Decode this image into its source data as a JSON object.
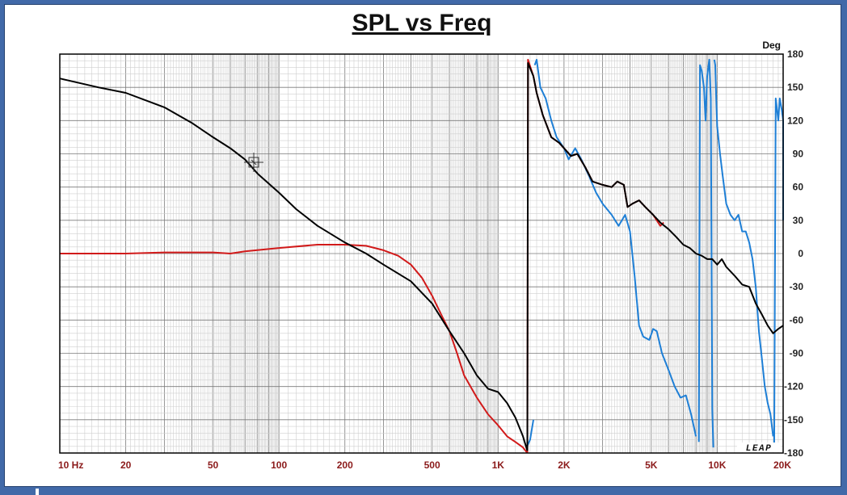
{
  "window": {
    "logo_text": "LEAP"
  },
  "chart_data": {
    "type": "line",
    "title": "SPL vs Freq",
    "ylabel": "Deg",
    "x_scale": "log",
    "xlim": [
      10,
      20000
    ],
    "ylim": [
      -180,
      180
    ],
    "grid": true,
    "x_tick_labels": [
      {
        "value": 10,
        "label": "10 Hz"
      },
      {
        "value": 20,
        "label": "20"
      },
      {
        "value": 50,
        "label": "50"
      },
      {
        "value": 100,
        "label": "100"
      },
      {
        "value": 200,
        "label": "200"
      },
      {
        "value": 500,
        "label": "500"
      },
      {
        "value": 1000,
        "label": "1K"
      },
      {
        "value": 2000,
        "label": "2K"
      },
      {
        "value": 5000,
        "label": "5K"
      },
      {
        "value": 10000,
        "label": "10K"
      },
      {
        "value": 20000,
        "label": "20K"
      }
    ],
    "y_tick_labels": [
      {
        "value": 180,
        "label": "180"
      },
      {
        "value": 150,
        "label": "150"
      },
      {
        "value": 120,
        "label": "120"
      },
      {
        "value": 90,
        "label": "90"
      },
      {
        "value": 60,
        "label": "60"
      },
      {
        "value": 30,
        "label": "30"
      },
      {
        "value": 0,
        "label": "0"
      },
      {
        "value": -30,
        "label": "-30"
      },
      {
        "value": -60,
        "label": "-60"
      },
      {
        "value": -90,
        "label": "-90"
      },
      {
        "value": -120,
        "label": "-120"
      },
      {
        "value": -150,
        "label": "-150"
      },
      {
        "value": -180,
        "label": "-180"
      }
    ],
    "series": [
      {
        "color": "#1e7fd6",
        "segments": [
          [
            [
              1350,
              -175
            ],
            [
              1400,
              -168
            ],
            [
              1450,
              -150
            ]
          ],
          [
            [
              1470,
              170
            ],
            [
              1500,
              175
            ],
            [
              1560,
              150
            ],
            [
              1650,
              140
            ],
            [
              1750,
              120
            ],
            [
              1850,
              105
            ],
            [
              2000,
              95
            ],
            [
              2100,
              85
            ],
            [
              2250,
              95
            ],
            [
              2400,
              85
            ],
            [
              2600,
              70
            ],
            [
              2800,
              55
            ],
            [
              3000,
              45
            ],
            [
              3300,
              35
            ],
            [
              3550,
              25
            ],
            [
              3800,
              35
            ],
            [
              4000,
              20
            ],
            [
              4200,
              -20
            ],
            [
              4400,
              -65
            ],
            [
              4600,
              -75
            ],
            [
              4900,
              -78
            ],
            [
              5100,
              -68
            ],
            [
              5300,
              -70
            ],
            [
              5600,
              -90
            ],
            [
              6000,
              -105
            ],
            [
              6400,
              -120
            ],
            [
              6800,
              -130
            ],
            [
              7200,
              -128
            ],
            [
              7600,
              -145
            ],
            [
              8000,
              -165
            ]
          ],
          [
            [
              8250,
              -170
            ],
            [
              8350,
              170
            ],
            [
              8500,
              165
            ],
            [
              8700,
              150
            ],
            [
              8850,
              120
            ],
            [
              9000,
              160
            ],
            [
              9200,
              175
            ],
            [
              9350,
              140
            ],
            [
              9500,
              -140
            ],
            [
              9600,
              -175
            ]
          ],
          [
            [
              9700,
              175
            ],
            [
              9800,
              170
            ],
            [
              9900,
              140
            ],
            [
              10000,
              115
            ],
            [
              10300,
              90
            ],
            [
              10600,
              70
            ],
            [
              11000,
              45
            ],
            [
              11500,
              35
            ],
            [
              12000,
              30
            ],
            [
              12500,
              35
            ],
            [
              13000,
              20
            ],
            [
              13500,
              20
            ],
            [
              14000,
              10
            ],
            [
              14500,
              -5
            ],
            [
              15000,
              -30
            ],
            [
              15500,
              -70
            ],
            [
              16000,
              -95
            ],
            [
              16500,
              -120
            ],
            [
              17000,
              -135
            ],
            [
              17500,
              -145
            ],
            [
              18000,
              -165
            ]
          ],
          [
            [
              18200,
              -178
            ],
            [
              18500,
              140
            ],
            [
              19000,
              120
            ],
            [
              19300,
              140
            ],
            [
              19700,
              130
            ],
            [
              20000,
              120
            ],
            [
              20000,
              30
            ]
          ]
        ]
      },
      {
        "color": "#d11a1a",
        "segments": [
          [
            [
              10,
              0
            ],
            [
              20,
              0
            ],
            [
              30,
              1
            ],
            [
              40,
              1
            ],
            [
              50,
              1
            ],
            [
              60,
              0
            ],
            [
              70,
              2
            ],
            [
              100,
              5
            ],
            [
              150,
              8
            ],
            [
              200,
              8
            ],
            [
              250,
              7
            ],
            [
              300,
              3
            ],
            [
              350,
              -2
            ],
            [
              400,
              -10
            ],
            [
              450,
              -22
            ],
            [
              500,
              -38
            ],
            [
              550,
              -55
            ],
            [
              600,
              -70
            ],
            [
              650,
              -90
            ],
            [
              700,
              -110
            ],
            [
              800,
              -130
            ],
            [
              900,
              -145
            ],
            [
              1000,
              -155
            ],
            [
              1100,
              -165
            ],
            [
              1200,
              -170
            ],
            [
              1300,
              -175
            ],
            [
              1360,
              -180
            ]
          ],
          [
            [
              1360,
              -180
            ],
            [
              1370,
              175
            ],
            [
              1450,
              160
            ],
            [
              1500,
              145
            ],
            [
              1600,
              125
            ],
            [
              1750,
              105
            ],
            [
              1900,
              100
            ],
            [
              2000,
              95
            ],
            [
              2150,
              88
            ],
            [
              2300,
              90
            ],
            [
              2500,
              78
            ],
            [
              2700,
              65
            ],
            [
              3000,
              62
            ],
            [
              3300,
              60
            ],
            [
              3500,
              65
            ],
            [
              3750,
              62
            ],
            [
              3900,
              42
            ],
            [
              4100,
              45
            ],
            [
              4400,
              48
            ],
            [
              4700,
              42
            ],
            [
              5100,
              35
            ],
            [
              5500,
              25
            ],
            [
              5700,
              28
            ]
          ]
        ]
      },
      {
        "color": "#000000",
        "segments": [
          [
            [
              10,
              158
            ],
            [
              15,
              150
            ],
            [
              20,
              145
            ],
            [
              30,
              132
            ],
            [
              40,
              118
            ],
            [
              50,
              105
            ],
            [
              60,
              95
            ],
            [
              70,
              85
            ],
            [
              80,
              72
            ],
            [
              100,
              55
            ],
            [
              120,
              40
            ],
            [
              150,
              25
            ],
            [
              200,
              10
            ],
            [
              250,
              0
            ],
            [
              300,
              -10
            ],
            [
              400,
              -25
            ],
            [
              500,
              -45
            ],
            [
              600,
              -70
            ],
            [
              700,
              -90
            ],
            [
              800,
              -110
            ],
            [
              900,
              -122
            ],
            [
              1000,
              -125
            ],
            [
              1100,
              -135
            ],
            [
              1200,
              -148
            ],
            [
              1300,
              -165
            ],
            [
              1360,
              -178
            ]
          ],
          [
            [
              1360,
              -178
            ],
            [
              1370,
              172
            ],
            [
              1450,
              160
            ],
            [
              1500,
              145
            ],
            [
              1600,
              125
            ],
            [
              1750,
              105
            ],
            [
              1900,
              100
            ],
            [
              2000,
              95
            ],
            [
              2150,
              88
            ],
            [
              2300,
              90
            ],
            [
              2500,
              78
            ],
            [
              2700,
              65
            ],
            [
              3000,
              62
            ],
            [
              3300,
              60
            ],
            [
              3500,
              65
            ],
            [
              3750,
              62
            ],
            [
              3900,
              42
            ],
            [
              4100,
              45
            ],
            [
              4400,
              48
            ],
            [
              4700,
              42
            ],
            [
              5100,
              35
            ],
            [
              5500,
              28
            ],
            [
              6000,
              22
            ],
            [
              6500,
              15
            ],
            [
              7000,
              8
            ],
            [
              7500,
              5
            ],
            [
              8000,
              0
            ],
            [
              8500,
              -2
            ],
            [
              9000,
              -5
            ],
            [
              9500,
              -5
            ],
            [
              10000,
              -10
            ],
            [
              10500,
              -5
            ],
            [
              11000,
              -12
            ],
            [
              12000,
              -20
            ],
            [
              13000,
              -28
            ],
            [
              14000,
              -30
            ],
            [
              15000,
              -45
            ],
            [
              16000,
              -55
            ],
            [
              17000,
              -65
            ],
            [
              18000,
              -72
            ],
            [
              19000,
              -68
            ],
            [
              20000,
              -65
            ]
          ]
        ]
      }
    ]
  }
}
